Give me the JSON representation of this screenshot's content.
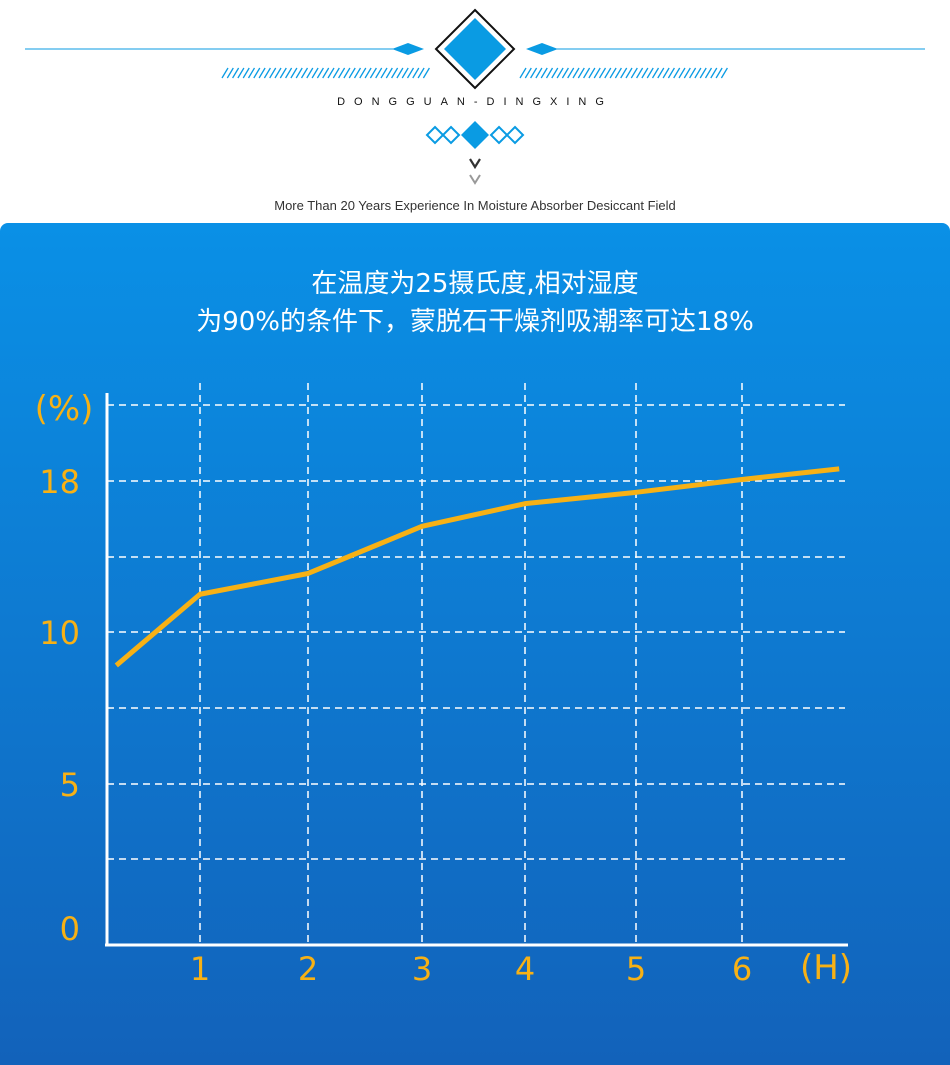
{
  "header": {
    "brand": "DONGGUAN-DINGXING",
    "tagline": "More Than 20 Years Experience In Moisture Absorber Desiccant Field",
    "accent": "#0a9be3"
  },
  "panel": {
    "title_line1": "在温度为25摄氏度,相对湿度",
    "title_line2": "为90%的条件下，蒙脱石干燥剂吸潮率可达18%"
  },
  "chart_data": {
    "type": "line",
    "title": "在温度为25摄氏度,相对湿度为90%的条件下，蒙脱石干燥剂吸潮率可达18%",
    "xlabel": "(H)",
    "ylabel": "(%)",
    "x_ticks": [
      "1",
      "2",
      "3",
      "4",
      "5",
      "6"
    ],
    "y_ticks": [
      "0",
      "5",
      "10",
      "18"
    ],
    "grid": true,
    "line_color": "#f7b115",
    "x": [
      0.1,
      1,
      2,
      3,
      4,
      5,
      6,
      6.9
    ],
    "y": [
      8.9,
      12.0,
      13.1,
      15.6,
      16.8,
      17.4,
      18.1,
      18.8
    ]
  }
}
